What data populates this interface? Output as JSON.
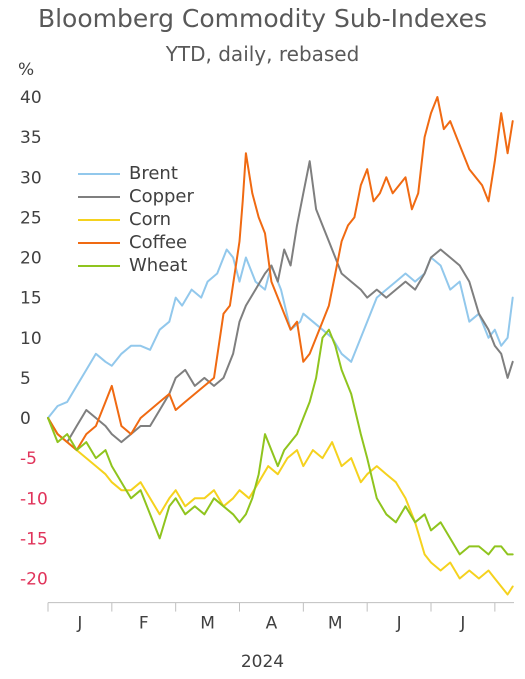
{
  "chart_data": {
    "type": "line",
    "title": "Bloomberg Commodity Sub-Indexes",
    "subtitle": "YTD, daily, rebased",
    "y_unit": "%",
    "xlabel": "2024",
    "ylim": [
      -23,
      42
    ],
    "yticks": [
      40,
      35,
      30,
      25,
      20,
      15,
      10,
      5,
      0,
      -5,
      -10,
      -15,
      -20
    ],
    "negative_tick_color": "#e0335a",
    "positive_tick_color": "#404040",
    "x_tick_labels": [
      "J",
      "F",
      "M",
      "A",
      "M",
      "J",
      "J"
    ],
    "x_range_months": [
      0,
      7.3
    ],
    "legend_position": "top-left",
    "grid": false,
    "series": [
      {
        "name": "Brent",
        "color": "#92c8ec",
        "x": [
          0,
          0.15,
          0.3,
          0.45,
          0.6,
          0.75,
          0.9,
          1.0,
          1.15,
          1.3,
          1.45,
          1.6,
          1.75,
          1.9,
          2.0,
          2.1,
          2.25,
          2.4,
          2.5,
          2.65,
          2.8,
          2.9,
          3.0,
          3.1,
          3.25,
          3.4,
          3.5,
          3.65,
          3.8,
          3.95,
          4.0,
          4.15,
          4.3,
          4.45,
          4.6,
          4.75,
          4.9,
          5.0,
          5.15,
          5.3,
          5.45,
          5.6,
          5.75,
          5.9,
          6.0,
          6.15,
          6.3,
          6.45,
          6.6,
          6.75,
          6.9,
          7.0,
          7.1,
          7.2,
          7.28
        ],
        "values": [
          0,
          1.5,
          2,
          4,
          6,
          8,
          7,
          6.5,
          8,
          9,
          9,
          8.5,
          11,
          12,
          15,
          14,
          16,
          15,
          17,
          18,
          21,
          20,
          17,
          20,
          17,
          16,
          19,
          16,
          11,
          12,
          13,
          12,
          11,
          10,
          8,
          7,
          10,
          12,
          15,
          16,
          17,
          18,
          17,
          18,
          20,
          19,
          16,
          17,
          12,
          13,
          10,
          11,
          9,
          10,
          15
        ]
      },
      {
        "name": "Copper",
        "color": "#7f7f7f",
        "x": [
          0,
          0.15,
          0.3,
          0.45,
          0.6,
          0.75,
          0.9,
          1.0,
          1.15,
          1.3,
          1.45,
          1.6,
          1.75,
          1.9,
          2.0,
          2.15,
          2.3,
          2.45,
          2.6,
          2.75,
          2.9,
          3.0,
          3.1,
          3.25,
          3.4,
          3.5,
          3.6,
          3.7,
          3.8,
          3.9,
          4.0,
          4.1,
          4.2,
          4.3,
          4.4,
          4.5,
          4.6,
          4.75,
          4.9,
          5.0,
          5.15,
          5.3,
          5.45,
          5.6,
          5.75,
          5.9,
          6.0,
          6.15,
          6.3,
          6.45,
          6.6,
          6.75,
          6.9,
          7.0,
          7.1,
          7.2,
          7.28
        ],
        "values": [
          0,
          -2,
          -3,
          -1,
          1,
          0,
          -1,
          -2,
          -3,
          -2,
          -1,
          -1,
          1,
          3,
          5,
          6,
          4,
          5,
          4,
          5,
          8,
          12,
          14,
          16,
          18,
          19,
          17,
          21,
          19,
          24,
          28,
          32,
          26,
          24,
          22,
          20,
          18,
          17,
          16,
          15,
          16,
          15,
          16,
          17,
          16,
          18,
          20,
          21,
          20,
          19,
          17,
          13,
          11,
          9,
          8,
          5,
          7
        ]
      },
      {
        "name": "Corn",
        "color": "#f5d21e",
        "x": [
          0,
          0.15,
          0.3,
          0.45,
          0.6,
          0.75,
          0.9,
          1.0,
          1.15,
          1.3,
          1.45,
          1.6,
          1.75,
          1.9,
          2.0,
          2.15,
          2.3,
          2.45,
          2.6,
          2.75,
          2.9,
          3.0,
          3.15,
          3.3,
          3.45,
          3.6,
          3.75,
          3.9,
          4.0,
          4.15,
          4.3,
          4.45,
          4.6,
          4.75,
          4.9,
          5.0,
          5.15,
          5.3,
          5.45,
          5.6,
          5.75,
          5.9,
          6.0,
          6.15,
          6.3,
          6.45,
          6.6,
          6.75,
          6.9,
          7.0,
          7.1,
          7.2,
          7.28
        ],
        "values": [
          0,
          -2,
          -3,
          -4,
          -5,
          -6,
          -7,
          -8,
          -9,
          -9,
          -8,
          -10,
          -12,
          -10,
          -9,
          -11,
          -10,
          -10,
          -9,
          -11,
          -10,
          -9,
          -10,
          -8,
          -6,
          -7,
          -5,
          -4,
          -6,
          -4,
          -5,
          -3,
          -6,
          -5,
          -8,
          -7,
          -6,
          -7,
          -8,
          -10,
          -13,
          -17,
          -18,
          -19,
          -18,
          -20,
          -19,
          -20,
          -19,
          -20,
          -21,
          -22,
          -21
        ]
      },
      {
        "name": "Coffee",
        "color": "#f06a12",
        "x": [
          0,
          0.15,
          0.3,
          0.45,
          0.6,
          0.75,
          0.9,
          1.0,
          1.15,
          1.3,
          1.45,
          1.6,
          1.75,
          1.9,
          2.0,
          2.15,
          2.3,
          2.45,
          2.6,
          2.75,
          2.85,
          3.0,
          3.05,
          3.1,
          3.2,
          3.3,
          3.4,
          3.5,
          3.6,
          3.7,
          3.8,
          3.9,
          4.0,
          4.1,
          4.2,
          4.3,
          4.4,
          4.5,
          4.6,
          4.7,
          4.8,
          4.9,
          5.0,
          5.1,
          5.2,
          5.3,
          5.4,
          5.5,
          5.6,
          5.7,
          5.8,
          5.9,
          6.0,
          6.1,
          6.2,
          6.3,
          6.4,
          6.5,
          6.6,
          6.7,
          6.8,
          6.9,
          7.0,
          7.1,
          7.2,
          7.28
        ],
        "values": [
          0,
          -2,
          -3,
          -4,
          -2,
          -1,
          2,
          4,
          -1,
          -2,
          0,
          1,
          2,
          3,
          1,
          2,
          3,
          4,
          5,
          13,
          14,
          22,
          27,
          33,
          28,
          25,
          23,
          17,
          15,
          13,
          11,
          12,
          7,
          8,
          10,
          12,
          14,
          18,
          22,
          24,
          25,
          29,
          31,
          27,
          28,
          30,
          28,
          29,
          30,
          26,
          28,
          35,
          38,
          40,
          36,
          37,
          35,
          33,
          31,
          30,
          29,
          27,
          32,
          38,
          33,
          37
        ]
      },
      {
        "name": "Wheat",
        "color": "#8fc41e",
        "x": [
          0,
          0.15,
          0.3,
          0.45,
          0.6,
          0.75,
          0.9,
          1.0,
          1.15,
          1.3,
          1.45,
          1.6,
          1.75,
          1.9,
          2.0,
          2.15,
          2.3,
          2.45,
          2.6,
          2.75,
          2.9,
          3.0,
          3.1,
          3.2,
          3.3,
          3.4,
          3.5,
          3.6,
          3.7,
          3.8,
          3.9,
          4.0,
          4.1,
          4.2,
          4.3,
          4.4,
          4.5,
          4.6,
          4.75,
          4.9,
          5.0,
          5.15,
          5.3,
          5.45,
          5.6,
          5.75,
          5.9,
          6.0,
          6.15,
          6.3,
          6.45,
          6.6,
          6.75,
          6.9,
          7.0,
          7.1,
          7.2,
          7.28
        ],
        "values": [
          0,
          -3,
          -2,
          -4,
          -3,
          -5,
          -4,
          -6,
          -8,
          -10,
          -9,
          -12,
          -15,
          -11,
          -10,
          -12,
          -11,
          -12,
          -10,
          -11,
          -12,
          -13,
          -12,
          -10,
          -7,
          -2,
          -4,
          -6,
          -4,
          -3,
          -2,
          0,
          2,
          5,
          10,
          11,
          9,
          6,
          3,
          -2,
          -5,
          -10,
          -12,
          -13,
          -11,
          -13,
          -12,
          -14,
          -13,
          -15,
          -17,
          -16,
          -16,
          -17,
          -16,
          -16,
          -17,
          -17
        ]
      }
    ]
  }
}
